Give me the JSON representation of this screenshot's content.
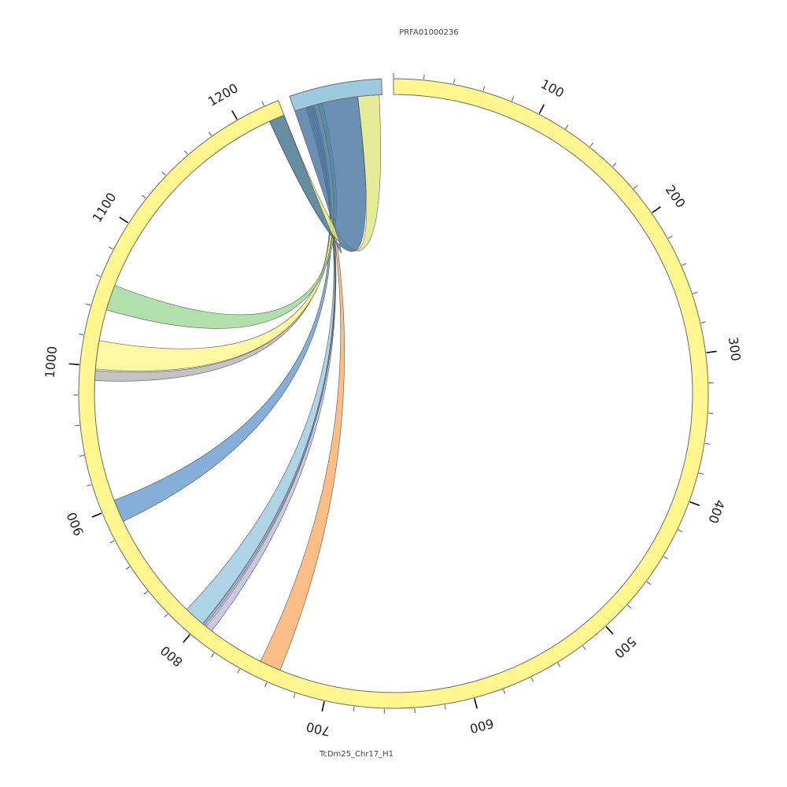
{
  "segments": [
    {
      "id": "chr17",
      "label": "TcDm25_Chr17_H1",
      "length": 1230,
      "color": "#fff68f",
      "ticks": [
        "100",
        "200",
        "300",
        "400",
        "500",
        "600",
        "700",
        "800",
        "900",
        "1000",
        "1100",
        "1200"
      ]
    },
    {
      "id": "prfa",
      "label": "PRFA01000236",
      "length": 62,
      "color": "#9ecae1"
    }
  ],
  "links": [
    {
      "color": "#fdae6b",
      "chr17_range": [
        735,
        750
      ],
      "prfa_range": [
        8,
        9
      ]
    },
    {
      "color": "#bcbddc",
      "chr17_range": [
        790,
        795
      ],
      "prfa_range": [
        9,
        10
      ]
    },
    {
      "color": "#9ecae1",
      "chr17_range": [
        798,
        813
      ],
      "prfa_range": [
        11,
        12
      ]
    },
    {
      "color": "#8c9fd0",
      "chr17_range": [
        796,
        798
      ],
      "prfa_range": [
        10,
        11
      ]
    },
    {
      "color": "#6a9ecf",
      "chr17_range": [
        889,
        905
      ],
      "prfa_range": [
        12,
        13
      ]
    },
    {
      "color": "#b7b7b7",
      "chr17_range": [
        990,
        997
      ],
      "prfa_range": [
        13,
        14
      ]
    },
    {
      "color": "#fff68f",
      "chr17_range": [
        998,
        1018
      ],
      "prfa_range": [
        14,
        17
      ]
    },
    {
      "color": "#a1d99b",
      "chr17_range": [
        1040,
        1058
      ],
      "prfa_range": [
        17,
        20
      ]
    },
    {
      "color": "#e0e782",
      "chr17_range": [
        1219,
        1230
      ],
      "prfa_range": [
        45,
        60
      ]
    },
    {
      "color": "#4b78a2",
      "chr17_range": [
        1219,
        1230
      ],
      "prfa_range": [
        0,
        45
      ]
    }
  ]
}
